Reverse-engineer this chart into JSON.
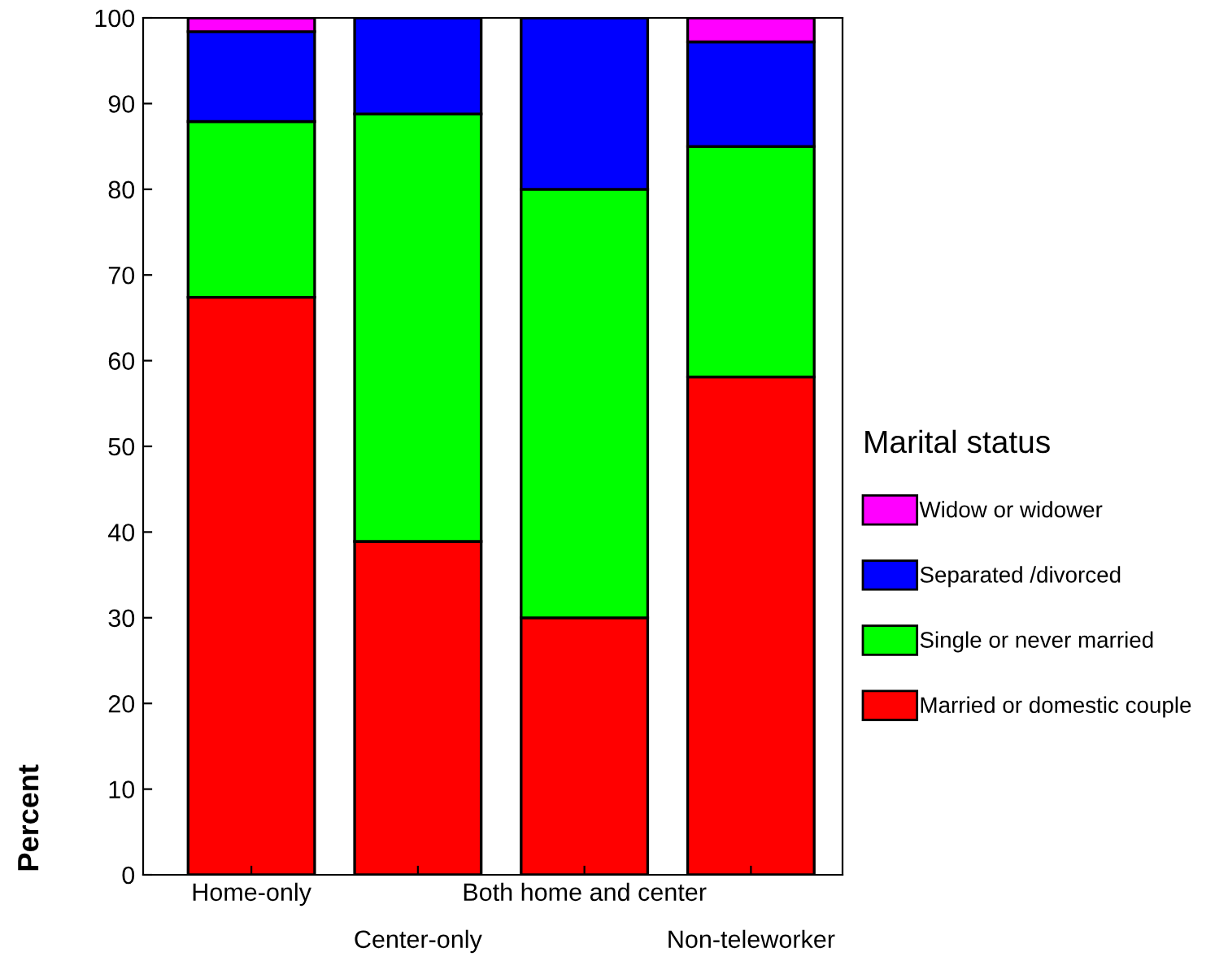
{
  "chart_data": {
    "type": "bar",
    "stacked": true,
    "ylabel": "Percent",
    "legend_title": "Marital status",
    "legend": "right",
    "categories": [
      "Home-only",
      "Center-only",
      "Both home and center",
      "Non-teleworker"
    ],
    "ylim": [
      0,
      100
    ],
    "yticks": [
      0,
      10,
      20,
      30,
      40,
      50,
      60,
      70,
      80,
      90,
      100
    ],
    "grid": false,
    "series": [
      {
        "name": "Married or domestic couple",
        "color": "#ff0000",
        "values": [
          67.4,
          38.9,
          30.0,
          58.1
        ]
      },
      {
        "name": "Single or never married",
        "color": "#00ff00",
        "values": [
          20.5,
          49.9,
          50.0,
          26.9
        ]
      },
      {
        "name": "Separated /divorced",
        "color": "#0000ff",
        "values": [
          10.5,
          11.2,
          20.0,
          12.2
        ]
      },
      {
        "name": "Widow or widower",
        "color": "#ff00ff",
        "values": [
          1.6,
          null,
          null,
          2.8
        ]
      }
    ]
  }
}
